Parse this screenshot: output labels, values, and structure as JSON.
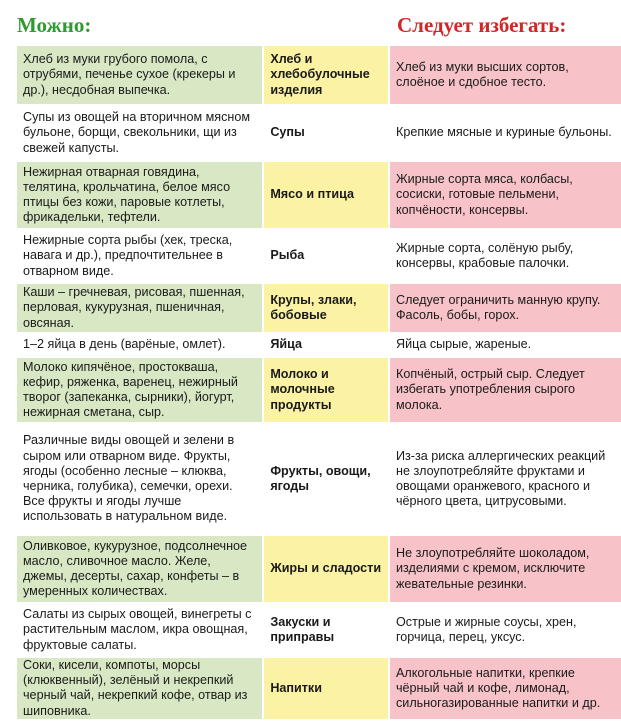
{
  "header": {
    "allowed": "Можно:",
    "avoid": "Следует избегать:"
  },
  "rows": [
    {
      "allowed": "Хлеб из муки грубого помола, с отрубями, печенье сухое (крекеры и др.), несдобная выпечка.",
      "category": "Хлеб и хлебобулочные изделия",
      "avoid": "Хлеб из муки высших сортов, слоёное и сдобное тесто."
    },
    {
      "allowed": "Супы из овощей на вторичном мясном бульоне, борщи, свекольники, щи из свежей капусты.",
      "category": "Супы",
      "avoid": "Крепкие мясные и куриные бульоны."
    },
    {
      "allowed": "Нежирная отварная говядина, телятина, крольчатина, белое мясо птицы без кожи, паровые котлеты, фрикадельки, тефтели.",
      "category": "Мясо и птица",
      "avoid": "Жирные сорта мяса, колбасы, сосиски, готовые пельмени, копчёности, консервы."
    },
    {
      "allowed": "Нежирные сорта рыбы (хек, треска, навага и др.), предпочтительнее в отварном виде.",
      "category": "Рыба",
      "avoid": "Жирные сорта, солёную рыбу, консервы, крабовые палочки."
    },
    {
      "allowed": "Каши – гречневая, рисовая, пшенная, перловая, кукурузная, пшеничная, овсяная.",
      "category": "Крупы, злаки, бобовые",
      "avoid": "Следует ограничить манную крупу. Фасоль, бобы, горох."
    },
    {
      "allowed": "1–2 яйца в день (варёные, омлет).",
      "category": "Яйца",
      "avoid": "Яйца сырые, жареные."
    },
    {
      "allowed": "Молоко кипячёное, простокваша, кефир, ряженка, варенец, нежирный творог (запеканка, сырники), йогурт, нежирная сметана, сыр.",
      "category": "Молоко и молочные продукты",
      "avoid": "Копчёный, острый сыр. Следует избегать употребления сырого молока."
    },
    {
      "allowed": "Различные виды овощей и зелени в сыром или отварном виде. Фрукты, ягоды (особенно лесные – клюква, черника, голубика), семечки, орехи. Все фрукты и ягоды лучше использовать в натуральном виде.",
      "category": "Фрукты, овощи, ягоды",
      "avoid": "Из-за риска аллергических реакций не злоупотребляйте фруктами и овощами оранжевого, красного и чёрного цвета, цитрусовыми."
    },
    {
      "allowed": "Оливковое, кукурузное, подсолнечное масло, сливочное масло. Желе, джемы, десерты, сахар, конфеты – в умеренных количествах.",
      "category": "Жиры и сладости",
      "avoid": "Не злоупотребляйте шоколадом, изделиями с кремом, исключите жевательные резинки."
    },
    {
      "allowed": "Салаты из сырых овощей, винегреты с растительным маслом, икра овощная, фруктовые салаты.",
      "category": "Закуски и приправы",
      "avoid": "Острые и жирные соусы, хрен, горчица, перец, уксус."
    },
    {
      "allowed": "Соки, кисели, компоты, морсы (клюквенный), зелёный и некрепкий черный чай, некрепкий кофе, отвар из шиповника.",
      "category": "Напитки",
      "avoid": "Алкогольные напитки, крепкие чёрный чай и кофе, лимонад, сильногазированные напитки и др."
    }
  ]
}
